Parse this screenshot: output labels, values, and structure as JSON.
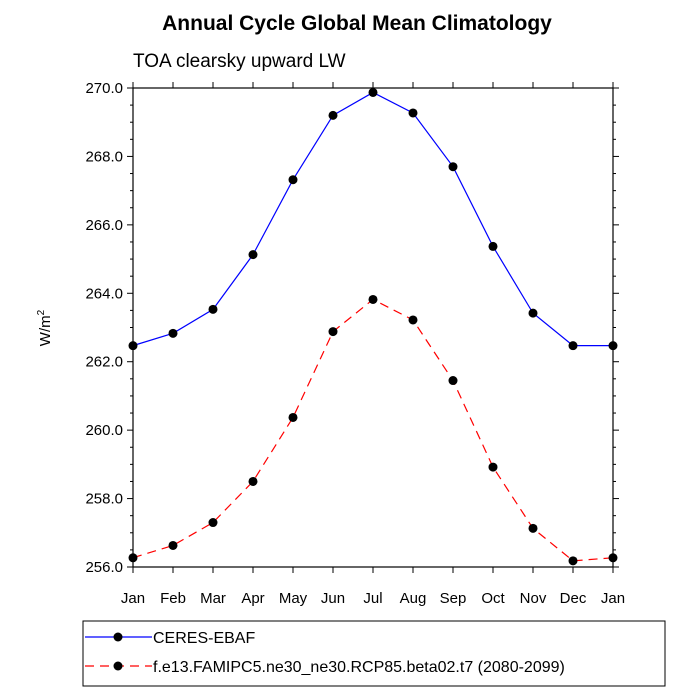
{
  "chart_data": {
    "type": "line",
    "title": "Annual Cycle Global Mean Climatology",
    "subtitle": "TOA clearsky upward LW",
    "ylabel_base": "W/m",
    "ylabel_sup": "2",
    "xlabel": "",
    "categories": [
      "Jan",
      "Feb",
      "Mar",
      "Apr",
      "May",
      "Jun",
      "Jul",
      "Aug",
      "Sep",
      "Oct",
      "Nov",
      "Dec",
      "Jan"
    ],
    "ylim": [
      256.0,
      270.0
    ],
    "yticks": [
      256.0,
      258.0,
      260.0,
      262.0,
      264.0,
      266.0,
      268.0,
      270.0
    ],
    "ytick_labels": [
      "256.0",
      "258.0",
      "260.0",
      "262.0",
      "264.0",
      "266.0",
      "268.0",
      "270.0"
    ],
    "grid": false,
    "legend_position": "bottom",
    "series": [
      {
        "name": "CERES-EBAF",
        "color": "#0000ff",
        "dash": "solid",
        "values": [
          262.47,
          262.83,
          263.53,
          265.13,
          267.32,
          269.2,
          269.87,
          269.27,
          267.7,
          265.37,
          263.42,
          262.47,
          262.47
        ]
      },
      {
        "name": "f.e13.FAMIPC5.ne30_ne30.RCP85.beta02.t7 (2080-2099)",
        "color": "#ff0000",
        "dash": "dashed",
        "values": [
          256.27,
          256.63,
          257.3,
          258.5,
          260.37,
          262.88,
          263.82,
          263.22,
          261.45,
          258.92,
          257.13,
          256.18,
          256.27
        ]
      }
    ]
  }
}
